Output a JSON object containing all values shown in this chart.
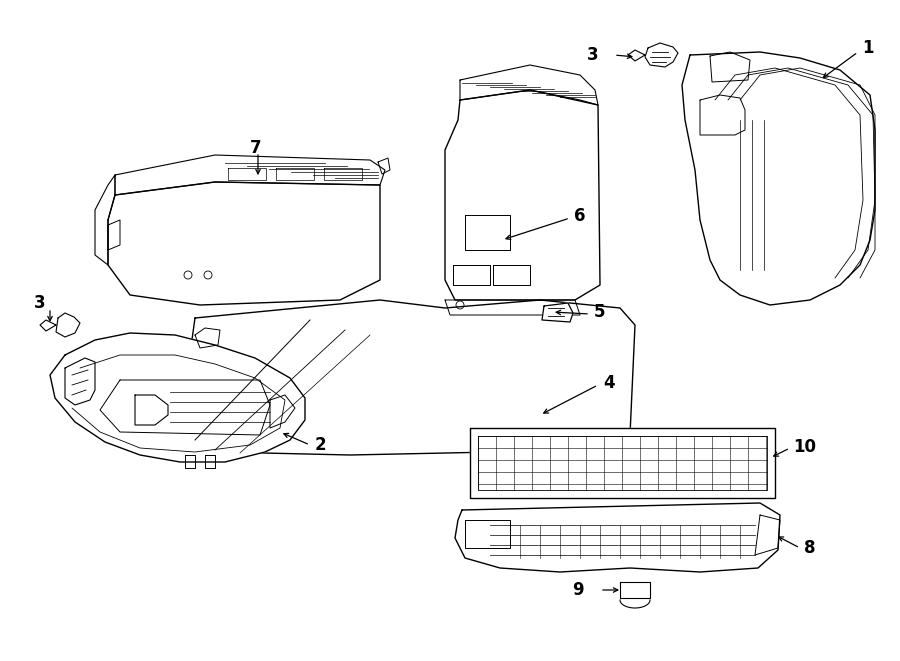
{
  "bg_color": "#ffffff",
  "line_color": "#000000",
  "lw": 1.0,
  "fig_width": 9.0,
  "fig_height": 6.61,
  "dpi": 100
}
